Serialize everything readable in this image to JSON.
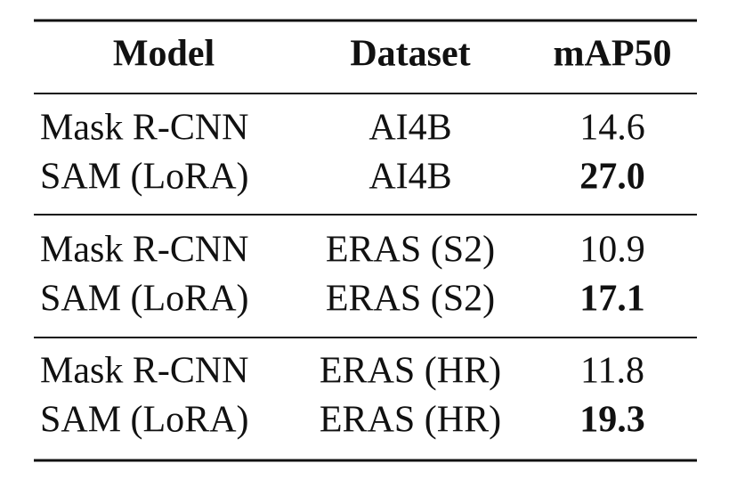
{
  "table": {
    "header": [
      "Model",
      "Dataset",
      "mAP50"
    ],
    "groups": [
      [
        [
          "Mask R-CNN",
          "AI4B",
          "14.6"
        ],
        [
          "SAM (LoRA)",
          "AI4B",
          "27.0"
        ]
      ],
      [
        [
          "Mask R-CNN",
          "ERAS (S2)",
          "10.9"
        ],
        [
          "SAM (LoRA)",
          "ERAS (S2)",
          "17.1"
        ]
      ],
      [
        [
          "Mask R-CNN",
          "ERAS (HR)",
          "11.8"
        ],
        [
          "SAM (LoRA)",
          "ERAS (HR)",
          "19.3"
        ]
      ]
    ]
  }
}
